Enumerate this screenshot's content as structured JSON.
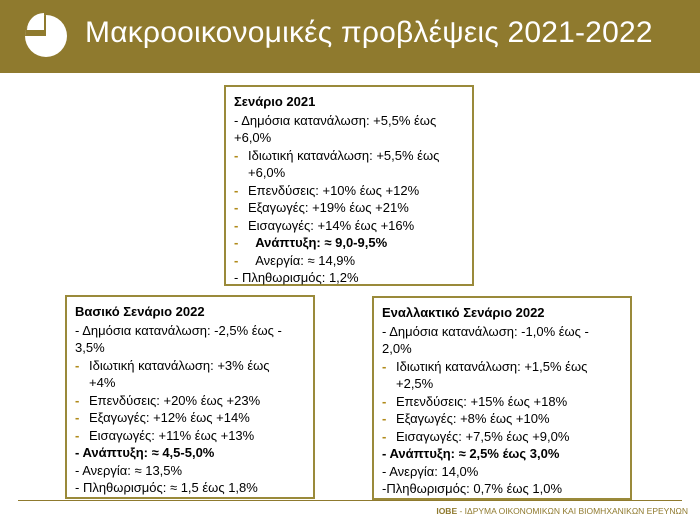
{
  "header": {
    "title": "Μακροοικονομικές προβλέψεις 2021-2022",
    "logo_icon": "pie-chart-icon",
    "background_color": "#8f7a2e"
  },
  "scenario_2021": {
    "heading": "Σενάριο 2021",
    "public_consumption_1": "- Δημόσια κατανάλωση: +5,5% έως",
    "public_consumption_2": "+6,0%",
    "private_consumption_1": "Ιδιωτική κατανάλωση: +5,5% έως",
    "private_consumption_2": "+6,0%",
    "investments": "Επενδύσεις: +10% έως +12%",
    "exports": "Εξαγωγές: +19% έως +21%",
    "imports": "Εισαγωγές: +14% έως +16%",
    "growth": "Ανάπτυξη: ≈ 9,0-9,5%",
    "unemployment": "Ανεργία: ≈ 14,9%",
    "inflation": "-  Πληθωρισμός: 1,2%"
  },
  "baseline_2022": {
    "heading": "Βασικό Σενάριο 2022",
    "public_consumption_1": "- Δημόσια κατανάλωση: -2,5% έως -",
    "public_consumption_2": "3,5%",
    "private_consumption_1": "Ιδιωτική κατανάλωση: +3% έως",
    "private_consumption_2": "+4%",
    "investments": "Επενδύσεις: +20% έως +23%",
    "exports": "Εξαγωγές: +12% έως +14%",
    "imports": "Εισαγωγές: +11% έως +13%",
    "growth": "- Ανάπτυξη: ≈ 4,5-5,0%",
    "unemployment": "-  Ανεργία: ≈ 13,5%",
    "inflation": "-  Πληθωρισμός: ≈ 1,5 έως 1,8%"
  },
  "alternative_2022": {
    "heading": "Εναλλακτικό Σενάριο 2022",
    "public_consumption_1": "- Δημόσια κατανάλωση: -1,0% έως -",
    "public_consumption_2": "2,0%",
    "private_consumption_1": "Ιδιωτική κατανάλωση: +1,5% έως",
    "private_consumption_2": "+2,5%",
    "investments": "Επενδύσεις: +15% έως +18%",
    "exports": "Εξαγωγές: +8% έως +10%",
    "imports": "Εισαγωγές: +7,5% έως +9,0%",
    "growth": "- Ανάπτυξη: ≈ 2,5% έως 3,0%",
    "unemployment": "-  Ανεργία: 14,0%",
    "inflation": "-Πληθωρισμός: 0,7% έως 1,0%"
  },
  "footer": {
    "org_abbr": "ΙΟΒΕ",
    "org_name": " - ΙΔΡΥΜΑ ΟΙΚΟΝΟΜΙΚΩΝ ΚΑΙ ΒΙΟΜΗΧΑΝΙΚΩΝ ΕΡΕΥΝΩΝ"
  }
}
